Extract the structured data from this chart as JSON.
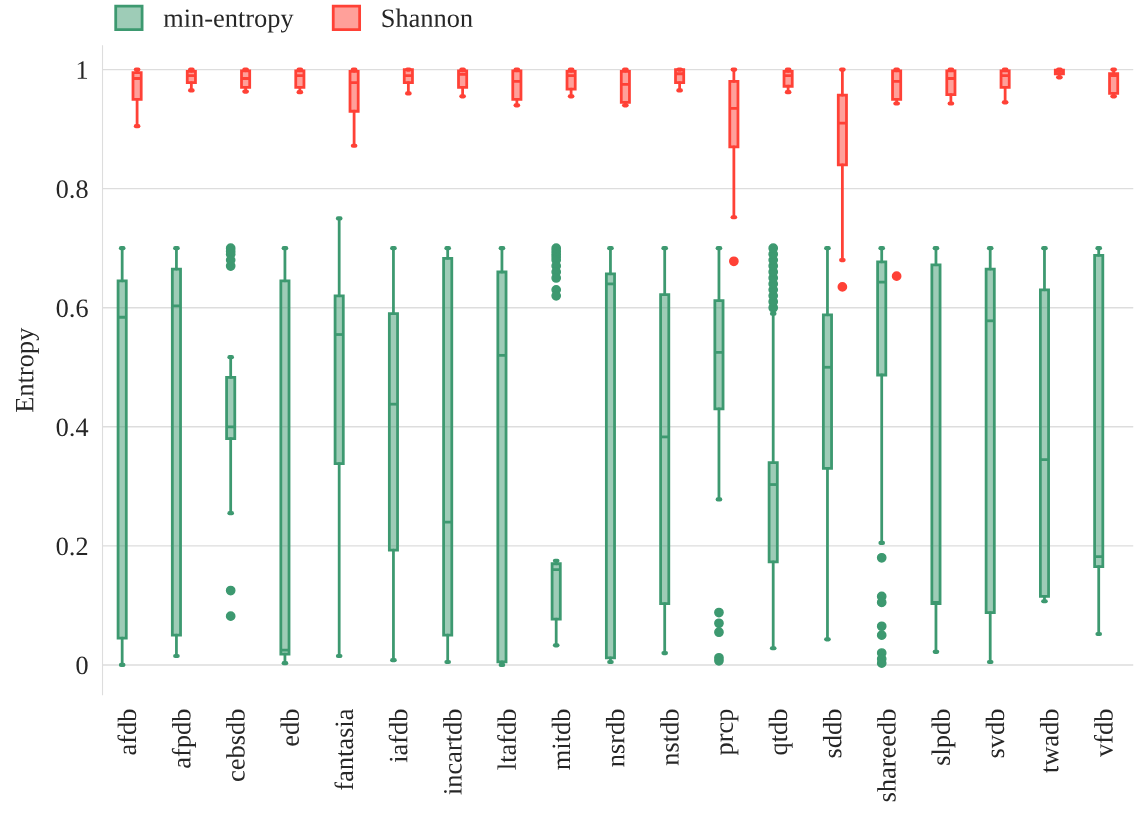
{
  "chart_data": {
    "type": "box",
    "ylabel": "Entropy",
    "categories": [
      "afdb",
      "afpdb",
      "cebsdb",
      "edb",
      "fantasia",
      "iafdb",
      "incartdb",
      "ltafdb",
      "mitdb",
      "nsrdb",
      "nstdb",
      "prcp",
      "qtdb",
      "sddb",
      "shareedb",
      "slpdb",
      "svdb",
      "twadb",
      "vfdb"
    ],
    "ylim": [
      -0.05,
      1.04
    ],
    "yticks": [
      0,
      0.2,
      0.4,
      0.6,
      0.8,
      1
    ],
    "grid": "y",
    "legend": "top left",
    "series": [
      {
        "name": "min-entropy",
        "color": "#3d9970",
        "boxes": [
          {
            "low": 0.0,
            "q1": 0.045,
            "median": 0.584,
            "q3": 0.645,
            "high": 0.7
          },
          {
            "low": 0.015,
            "q1": 0.05,
            "median": 0.603,
            "q3": 0.665,
            "high": 0.7
          },
          {
            "low": 0.255,
            "q1": 0.38,
            "median": 0.4,
            "q3": 0.483,
            "high": 0.517,
            "outliers": [
              0.7,
              0.695,
              0.69,
              0.68,
              0.67,
              0.125,
              0.082
            ]
          },
          {
            "low": 0.003,
            "q1": 0.018,
            "median": 0.025,
            "q3": 0.645,
            "high": 0.7
          },
          {
            "low": 0.015,
            "q1": 0.338,
            "median": 0.555,
            "q3": 0.62,
            "high": 0.75
          },
          {
            "low": 0.008,
            "q1": 0.193,
            "median": 0.438,
            "q3": 0.59,
            "high": 0.7
          },
          {
            "low": 0.005,
            "q1": 0.05,
            "median": 0.24,
            "q3": 0.683,
            "high": 0.7
          },
          {
            "low": 0.0,
            "q1": 0.005,
            "median": 0.52,
            "q3": 0.66,
            "high": 0.7
          },
          {
            "low": 0.033,
            "q1": 0.077,
            "median": 0.16,
            "q3": 0.17,
            "high": 0.175,
            "outliers": [
              0.7,
              0.695,
              0.69,
              0.685,
              0.68,
              0.67,
              0.66,
              0.65,
              0.63,
              0.62
            ]
          },
          {
            "low": 0.005,
            "q1": 0.012,
            "median": 0.64,
            "q3": 0.657,
            "high": 0.7
          },
          {
            "low": 0.02,
            "q1": 0.103,
            "median": 0.383,
            "q3": 0.622,
            "high": 0.7
          },
          {
            "low": 0.278,
            "q1": 0.43,
            "median": 0.525,
            "q3": 0.612,
            "high": 0.7,
            "outliers": [
              0.088,
              0.07,
              0.055,
              0.012,
              0.007
            ]
          },
          {
            "low": 0.028,
            "q1": 0.173,
            "median": 0.303,
            "q3": 0.34,
            "high": 0.59,
            "outliers": [
              0.6,
              0.61,
              0.62,
              0.63,
              0.64,
              0.65,
              0.66,
              0.67,
              0.68,
              0.69,
              0.7
            ]
          },
          {
            "low": 0.043,
            "q1": 0.33,
            "median": 0.5,
            "q3": 0.588,
            "high": 0.7
          },
          {
            "low": 0.205,
            "q1": 0.487,
            "median": 0.643,
            "q3": 0.677,
            "high": 0.7,
            "outliers": [
              0.18,
              0.115,
              0.105,
              0.065,
              0.05,
              0.02,
              0.01,
              0.003
            ]
          },
          {
            "low": 0.022,
            "q1": 0.103,
            "median": 0.105,
            "q3": 0.672,
            "high": 0.7
          },
          {
            "low": 0.005,
            "q1": 0.088,
            "median": 0.578,
            "q3": 0.665,
            "high": 0.7
          },
          {
            "low": 0.107,
            "q1": 0.115,
            "median": 0.345,
            "q3": 0.63,
            "high": 0.7
          },
          {
            "low": 0.052,
            "q1": 0.165,
            "median": 0.182,
            "q3": 0.688,
            "high": 0.7
          }
        ]
      },
      {
        "name": "Shannon",
        "color": "#ff4136",
        "boxes": [
          {
            "low": 0.905,
            "q1": 0.95,
            "median": 0.985,
            "q3": 0.995,
            "high": 1.0
          },
          {
            "low": 0.965,
            "q1": 0.978,
            "median": 0.99,
            "q3": 0.997,
            "high": 1.0
          },
          {
            "low": 0.963,
            "q1": 0.97,
            "median": 0.985,
            "q3": 0.998,
            "high": 1.0
          },
          {
            "low": 0.962,
            "q1": 0.97,
            "median": 0.99,
            "q3": 0.998,
            "high": 1.0
          },
          {
            "low": 0.872,
            "q1": 0.93,
            "median": 0.978,
            "q3": 0.997,
            "high": 1.0
          },
          {
            "low": 0.96,
            "q1": 0.978,
            "median": 0.99,
            "q3": 1.0,
            "high": 1.0
          },
          {
            "low": 0.955,
            "q1": 0.97,
            "median": 0.992,
            "q3": 0.998,
            "high": 1.0
          },
          {
            "low": 0.94,
            "q1": 0.95,
            "median": 0.98,
            "q3": 0.998,
            "high": 1.0
          },
          {
            "low": 0.955,
            "q1": 0.967,
            "median": 0.99,
            "q3": 0.997,
            "high": 1.0
          },
          {
            "low": 0.94,
            "q1": 0.945,
            "median": 0.975,
            "q3": 0.997,
            "high": 1.0
          },
          {
            "low": 0.965,
            "q1": 0.978,
            "median": 0.993,
            "q3": 1.0,
            "high": 1.0
          },
          {
            "low": 0.752,
            "q1": 0.87,
            "median": 0.935,
            "q3": 0.98,
            "high": 1.0,
            "outliers": [
              0.678
            ]
          },
          {
            "low": 0.962,
            "q1": 0.972,
            "median": 0.99,
            "q3": 0.997,
            "high": 1.0
          },
          {
            "low": 0.68,
            "q1": 0.84,
            "median": 0.91,
            "q3": 0.957,
            "high": 1.0,
            "outliers": [
              0.635
            ]
          },
          {
            "low": 0.943,
            "q1": 0.95,
            "median": 0.98,
            "q3": 0.998,
            "high": 1.0,
            "outliers": [
              0.653
            ]
          },
          {
            "low": 0.943,
            "q1": 0.958,
            "median": 0.985,
            "q3": 0.998,
            "high": 1.0
          },
          {
            "low": 0.945,
            "q1": 0.97,
            "median": 0.99,
            "q3": 0.998,
            "high": 1.0
          },
          {
            "low": 0.987,
            "q1": 0.993,
            "median": 0.997,
            "q3": 0.999,
            "high": 1.0
          },
          {
            "low": 0.955,
            "q1": 0.96,
            "median": 0.99,
            "q3": 0.993,
            "high": 1.0
          }
        ]
      }
    ]
  }
}
